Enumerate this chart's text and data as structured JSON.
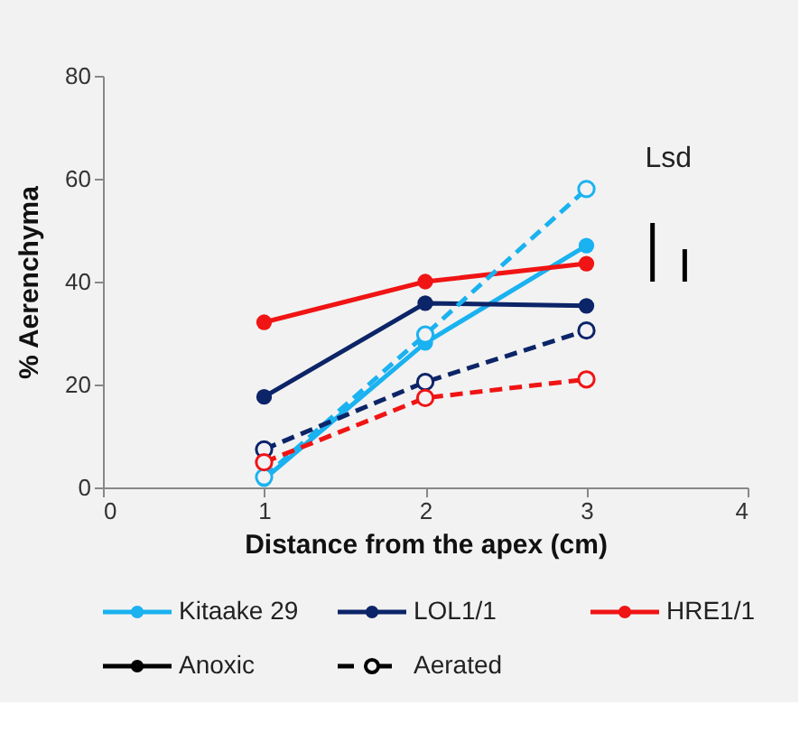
{
  "chart_data": {
    "type": "line",
    "xlabel": "Distance from the apex (cm)",
    "ylabel": "% Aerenchyma",
    "x": [
      1,
      2,
      3
    ],
    "xlim": [
      0,
      4
    ],
    "xticks": [
      0,
      1,
      2,
      3,
      4
    ],
    "ylim": [
      0,
      80
    ],
    "yticks": [
      0,
      20,
      40,
      60,
      80
    ],
    "grid": false,
    "marker": "circle",
    "legend": "bottom",
    "series": [
      {
        "name": "Kitaake 29",
        "color": "#1ab2f0",
        "values": [
          1.6,
          28.1,
          47
        ],
        "line_style": "solid"
      },
      {
        "name": "LOL1/1",
        "color": "#0c2468",
        "values": [
          17.6,
          35.8,
          35.3
        ],
        "line_style": "solid"
      },
      {
        "name": "HRE1/1",
        "color": "#f01414",
        "values": [
          32.1,
          40,
          43.5
        ],
        "line_style": "solid"
      },
      {
        "name": "Anoxic",
        "color": "#000000",
        "values": [
          null,
          null,
          null
        ],
        "line_style": "solid"
      },
      {
        "name": "Aerated",
        "color": "#000000",
        "values": [
          null,
          null,
          null
        ],
        "line_style": "dashed"
      },
      {
        "color": "#1ab2f0",
        "values": [
          2,
          29.7,
          58
        ],
        "line_style": "dashed"
      },
      {
        "color": "#0c2468",
        "values": [
          7.4,
          20.5,
          30.5
        ],
        "line_style": "dashed"
      },
      {
        "color": "#f01414",
        "values": [
          4.9,
          17.4,
          21
        ],
        "line_style": "dashed"
      },
      {
        "type": "bar",
        "marker": "none",
        "color": "#000000",
        "x": [
          3.41,
          3.61
        ],
        "base": [
          40,
          40
        ],
        "values": [
          11.4,
          6.3
        ]
      }
    ],
    "annotations": [
      "Lsd"
    ]
  }
}
